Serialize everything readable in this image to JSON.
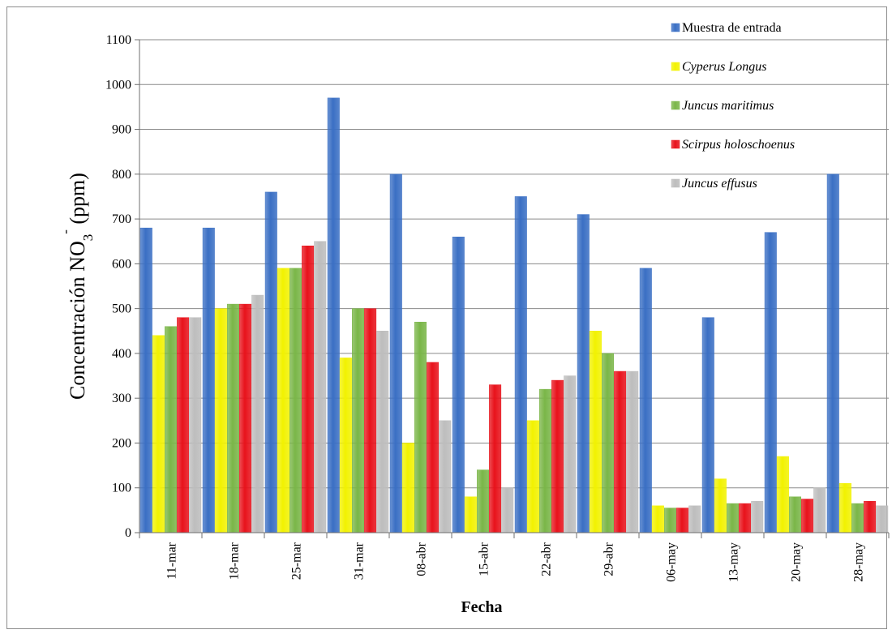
{
  "chart_data": {
    "type": "bar",
    "title": "",
    "xlabel": "Fecha",
    "ylabel": {
      "main": "Concentración NO",
      "sub": "3",
      "sup": "-",
      "unit": " (ppm)"
    },
    "ylim": [
      0,
      1100
    ],
    "yticks": [
      0,
      100,
      200,
      300,
      400,
      500,
      600,
      700,
      800,
      900,
      1000,
      1100
    ],
    "grid": true,
    "legend_position": "top-right",
    "categories": [
      "11-mar",
      "18-mar",
      "25-mar",
      "31-mar",
      "08-abr",
      "15-abr",
      "22-abr",
      "29-abr",
      "06-may",
      "13-may",
      "20-may",
      "28-may"
    ],
    "series": [
      {
        "name": "Muestra de entrada",
        "italic": false,
        "color": "#3a6fc4",
        "values": [
          680,
          680,
          760,
          970,
          800,
          660,
          750,
          710,
          590,
          480,
          670,
          800
        ]
      },
      {
        "name": "Cyperus Longus",
        "italic": true,
        "color": "#f2f200",
        "values": [
          440,
          500,
          590,
          390,
          200,
          80,
          250,
          450,
          60,
          120,
          170,
          110
        ]
      },
      {
        "name": "Juncus maritimus",
        "italic": true,
        "color": "#7ab648",
        "values": [
          460,
          510,
          590,
          500,
          470,
          140,
          320,
          400,
          55,
          65,
          80,
          65
        ]
      },
      {
        "name": "Scirpus holoschoenus",
        "italic": true,
        "color": "#e8121b",
        "values": [
          480,
          510,
          640,
          500,
          380,
          330,
          340,
          360,
          55,
          65,
          75,
          70
        ]
      },
      {
        "name": "Juncus effusus",
        "italic": true,
        "color": "#bdbdbd",
        "values": [
          480,
          530,
          650,
          450,
          250,
          100,
          350,
          360,
          60,
          70,
          100,
          60
        ]
      }
    ]
  }
}
